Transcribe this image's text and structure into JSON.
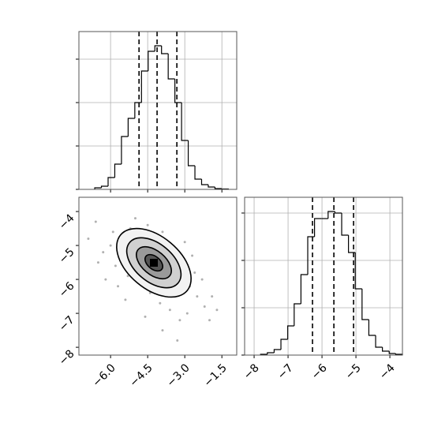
{
  "chart_data": [
    {
      "type": "histogram",
      "bins": [
        -6.64,
        -6.37,
        -6.1,
        -5.83,
        -5.56,
        -5.29,
        -5.02,
        -4.75,
        -4.48,
        -4.21,
        -3.94,
        -3.67,
        -3.4,
        -3.13,
        -2.86,
        -2.59,
        -2.32,
        -2.05,
        -1.78,
        -1.51,
        -1.24
      ],
      "counts": [
        36,
        73,
        273,
        582,
        1218,
        1636,
        2000,
        2727,
        3182,
        3309,
        3127,
        2545,
        2000,
        1127,
        545,
        236,
        109,
        55,
        18,
        9
      ],
      "quantiles": [
        -4.85,
        -4.12,
        -3.32
      ],
      "xlim": [
        -7.28,
        -0.9
      ],
      "xticks": [
        -6,
        -4.5,
        -3,
        -1.5
      ],
      "ylim": [
        0,
        3636
      ],
      "yticks": [
        0,
        1000,
        2000,
        3000
      ],
      "grid": true,
      "color": "#000000"
    },
    {
      "type": "scatter",
      "x": [
        -5.9,
        -5.5,
        -5.2,
        -4.9,
        -4.6,
        -4.3,
        -4.0,
        -3.7,
        -3.4,
        -3.1,
        -2.8,
        -2.5,
        -2.2,
        -6.3,
        -5.8,
        -5.3,
        -4.8,
        -4.4,
        -4.0,
        -3.6,
        -3.2,
        -2.9,
        -6.6,
        -6.0,
        -5.6,
        -5.1,
        -4.7,
        -4.2,
        -3.8,
        -3.3,
        -2.6,
        -2.3,
        -1.9,
        -5.0,
        -4.5,
        -3.9,
        -3.5,
        -6.2,
        -5.4,
        -4.6,
        -3.9,
        -3.3,
        -2.0,
        -1.7,
        -6.9,
        -6.5,
        -5.7,
        -3.0,
        -2.7,
        -4.1
      ],
      "y": [
        -4.6,
        -4.9,
        -4.5,
        -4.8,
        -5.0,
        -4.7,
        -5.2,
        -5.3,
        -5.6,
        -5.9,
        -6.2,
        -6.5,
        -6.8,
        -5.2,
        -5.6,
        -5.9,
        -6.1,
        -6.4,
        -6.7,
        -6.9,
        -7.2,
        -7.0,
        -4.3,
        -5.0,
        -5.3,
        -5.5,
        -5.7,
        -5.9,
        -6.0,
        -6.3,
        -5.8,
        -6.0,
        -6.5,
        -4.2,
        -4.4,
        -4.6,
        -5.0,
        -6.0,
        -6.6,
        -7.1,
        -7.5,
        -7.8,
        -7.2,
        -6.9,
        -4.8,
        -5.5,
        -6.2,
        -4.9,
        -5.3,
        -5.5
      ],
      "xlim": [
        -7.28,
        -0.9
      ],
      "xticks": [
        {
          "value": -6,
          "label": "−6.0"
        },
        {
          "value": -4.5,
          "label": "−4.5"
        },
        {
          "value": -3,
          "label": "−3.0"
        },
        {
          "value": -1.5,
          "label": "−1.5"
        }
      ],
      "ylim": [
        -8.23,
        -3.58
      ],
      "yticks": [
        {
          "value": -8,
          "label": "−8"
        },
        {
          "value": -7,
          "label": "−7"
        },
        {
          "value": -6,
          "label": "−6"
        },
        {
          "value": -5,
          "label": "−5"
        },
        {
          "value": -4,
          "label": "−4"
        }
      ],
      "grid": false,
      "color": "#b0b0b0"
    },
    {
      "type": "histogram",
      "bins": [
        -7.81,
        -7.61,
        -7.41,
        -7.21,
        -7.01,
        -6.82,
        -6.62,
        -6.42,
        -6.22,
        -6.02,
        -5.82,
        -5.62,
        -5.42,
        -5.22,
        -5.02,
        -4.82,
        -4.62,
        -4.42,
        -4.22,
        -4.02,
        -3.83,
        -3.63
      ],
      "counts": [
        17,
        50,
        117,
        333,
        617,
        1083,
        1700,
        2500,
        2883,
        2883,
        3033,
        3000,
        2533,
        2167,
        1400,
        750,
        417,
        167,
        83,
        33,
        17
      ],
      "quantiles": [
        -6.28,
        -5.65,
        -5.07
      ],
      "xlim": [
        -8.28,
        -3.63
      ],
      "xticks": [
        {
          "value": -8,
          "label": "−8"
        },
        {
          "value": -7,
          "label": "−7"
        },
        {
          "value": -6,
          "label": "−6"
        },
        {
          "value": -5,
          "label": "−5"
        },
        {
          "value": -4,
          "label": "−4"
        }
      ],
      "ylim": [
        0,
        3333
      ],
      "yticks": [
        0,
        1000,
        2000,
        3000
      ],
      "grid": true,
      "color": "#000000"
    }
  ]
}
